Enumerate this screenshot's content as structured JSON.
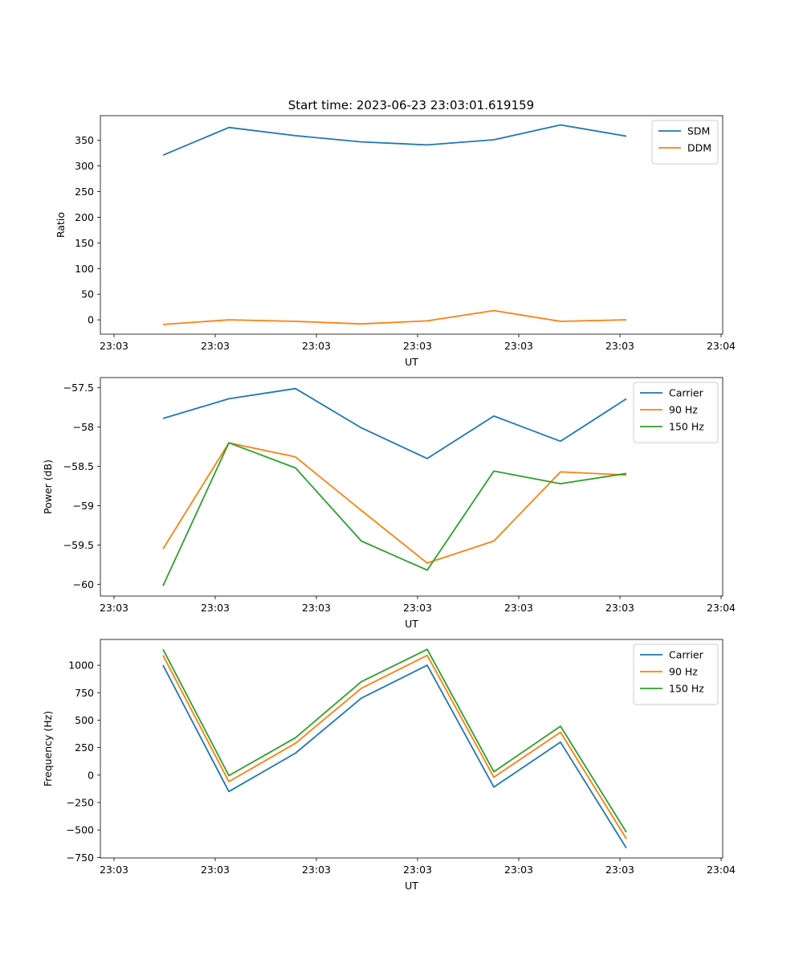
{
  "title": "Start time: 2023-06-23 23:03:01.619159",
  "colors": {
    "blue": "#1f77b4",
    "orange": "#ff7f0e",
    "green": "#2ca02c"
  },
  "chart_data": [
    {
      "type": "line",
      "xlabel": "UT",
      "ylabel": "Ratio",
      "xticks": [
        "23:03",
        "23:03",
        "23:03",
        "23:03",
        "23:03",
        "23:03",
        "23:04"
      ],
      "yticks": [
        0,
        50,
        100,
        150,
        200,
        250,
        300,
        350
      ],
      "ylim": [
        -28,
        398
      ],
      "legend_position": "upper right",
      "series": [
        {
          "name": "SDM",
          "color": "#1f77b4",
          "values": [
            321,
            375,
            359,
            347,
            341,
            351,
            380,
            358
          ]
        },
        {
          "name": "DDM",
          "color": "#ff7f0e",
          "values": [
            -9,
            0,
            -3,
            -8,
            -2,
            18,
            -3,
            0
          ]
        }
      ]
    },
    {
      "type": "line",
      "xlabel": "UT",
      "ylabel": "Power (dB)",
      "xticks": [
        "23:03",
        "23:03",
        "23:03",
        "23:03",
        "23:03",
        "23:03",
        "23:04"
      ],
      "yticks": [
        -57.5,
        -58.0,
        -58.5,
        -59.0,
        -59.5,
        -60.0
      ],
      "ylim": [
        -60.15,
        -57.37
      ],
      "legend_position": "upper right",
      "series": [
        {
          "name": "Carrier",
          "color": "#1f77b4",
          "values": [
            -57.89,
            -57.64,
            -57.51,
            -58.01,
            -58.4,
            -57.86,
            -58.18,
            -57.64
          ]
        },
        {
          "name": "90 Hz",
          "color": "#ff7f0e",
          "values": [
            -59.55,
            -58.2,
            -58.38,
            -59.06,
            -59.73,
            -59.45,
            -58.57,
            -58.61
          ]
        },
        {
          "name": "150 Hz",
          "color": "#2ca02c",
          "values": [
            -60.02,
            -58.2,
            -58.52,
            -59.45,
            -59.82,
            -58.56,
            -58.72,
            -58.59
          ]
        }
      ]
    },
    {
      "type": "line",
      "xlabel": "UT",
      "ylabel": "Frequency (Hz)",
      "xticks": [
        "23:03",
        "23:03",
        "23:03",
        "23:03",
        "23:03",
        "23:03",
        "23:04"
      ],
      "yticks": [
        1000,
        750,
        500,
        250,
        0,
        -250,
        -500,
        -750
      ],
      "ylim": [
        -755,
        1235
      ],
      "legend_position": "upper right",
      "series": [
        {
          "name": "Carrier",
          "color": "#1f77b4",
          "values": [
            1000,
            -150,
            200,
            700,
            1000,
            -110,
            300,
            -665
          ]
        },
        {
          "name": "90 Hz",
          "color": "#ff7f0e",
          "values": [
            1090,
            -60,
            290,
            790,
            1090,
            -20,
            390,
            -580
          ]
        },
        {
          "name": "150 Hz",
          "color": "#2ca02c",
          "values": [
            1145,
            -5,
            340,
            850,
            1145,
            30,
            445,
            -520
          ]
        }
      ]
    }
  ]
}
